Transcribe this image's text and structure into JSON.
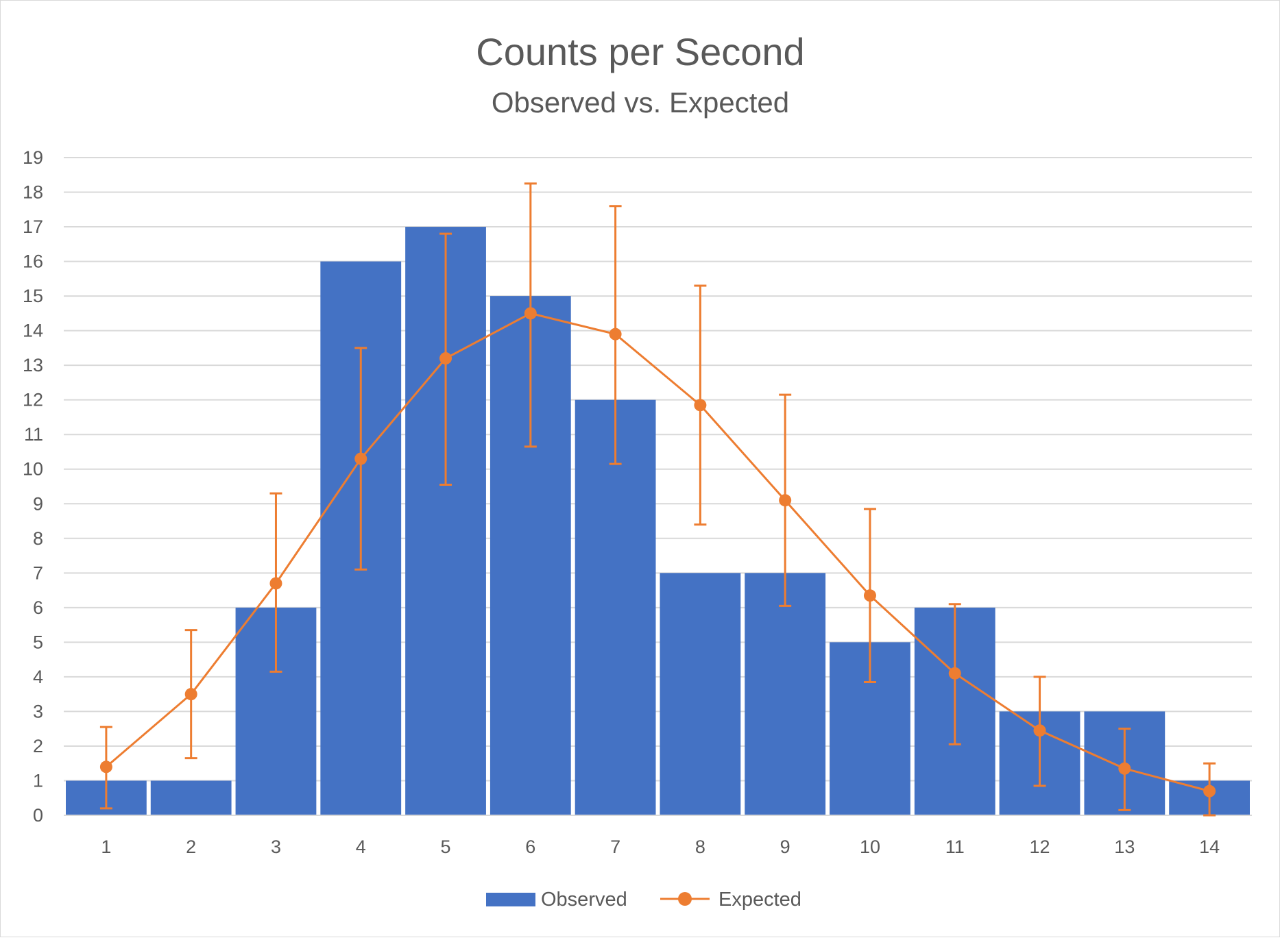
{
  "chart_data": {
    "type": "bar",
    "title": "Counts per Second",
    "subtitle": "Observed vs. Expected",
    "xlabel": "",
    "ylabel": "",
    "categories": [
      "1",
      "2",
      "3",
      "4",
      "5",
      "6",
      "7",
      "8",
      "9",
      "10",
      "11",
      "12",
      "13",
      "14"
    ],
    "ylim": [
      0,
      19
    ],
    "yticks": [
      0,
      1,
      2,
      3,
      4,
      5,
      6,
      7,
      8,
      9,
      10,
      11,
      12,
      13,
      14,
      15,
      16,
      17,
      18,
      19
    ],
    "grid": true,
    "legend_position": "bottom",
    "series": [
      {
        "name": "Observed",
        "type": "bar",
        "color": "#4472c4",
        "values": [
          1,
          1,
          6,
          16,
          17,
          15,
          12,
          7,
          7,
          5,
          6,
          3,
          3,
          1
        ]
      },
      {
        "name": "Expected",
        "type": "line",
        "marker": "circle",
        "color": "#ed7d31",
        "values": [
          1.4,
          3.5,
          6.7,
          10.3,
          13.2,
          14.5,
          13.9,
          11.85,
          9.1,
          6.35,
          4.1,
          2.45,
          1.35,
          0.7
        ],
        "error_low": [
          0.2,
          1.65,
          4.15,
          7.1,
          9.55,
          10.65,
          10.15,
          8.4,
          6.05,
          3.85,
          2.05,
          0.85,
          0.15,
          0.0
        ],
        "error_high": [
          2.55,
          5.35,
          9.3,
          13.5,
          16.8,
          18.25,
          17.6,
          15.3,
          12.15,
          8.85,
          6.1,
          4.0,
          2.5,
          1.5
        ]
      }
    ]
  }
}
